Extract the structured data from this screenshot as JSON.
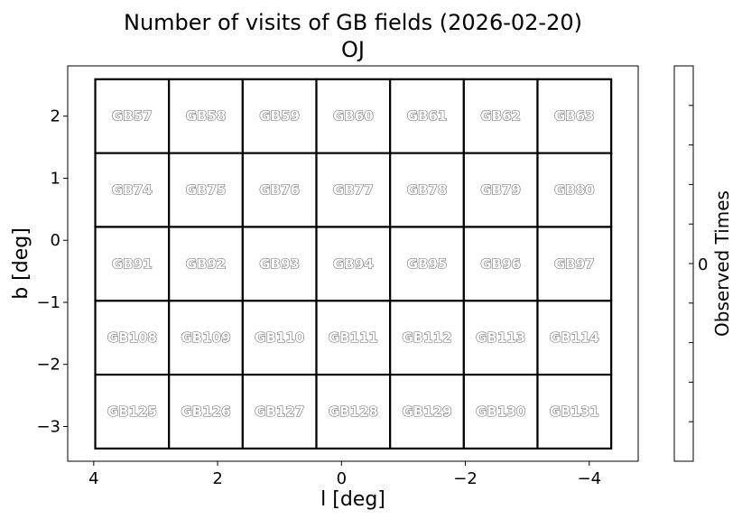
{
  "chart_data": {
    "type": "heatmap",
    "title": "Number of visits of GB fields (2026-02-20)",
    "subtitle": "OJ",
    "xlabel": "l [deg]",
    "ylabel": "b [deg]",
    "xlim": [
      4.42,
      -4.79
    ],
    "ylim": [
      -3.56,
      2.81
    ],
    "x_inverted": true,
    "xticks": [
      4,
      2,
      0,
      -2,
      -4
    ],
    "xtick_labels": [
      "4",
      "2",
      "0",
      "−2",
      "−4"
    ],
    "yticks": [
      2,
      1,
      0,
      -1,
      -2,
      -3
    ],
    "ytick_labels": [
      "2",
      "1",
      "0",
      "−1",
      "−2",
      "−3"
    ],
    "field_size_deg": 1.19,
    "column_l": [
      3.38,
      2.19,
      1.0,
      -0.19,
      -1.38,
      -2.57,
      -3.76
    ],
    "row_b": [
      2.0,
      0.81,
      -0.38,
      -1.57,
      -2.76
    ],
    "fields": [
      [
        "GB57",
        "GB58",
        "GB59",
        "GB60",
        "GB61",
        "GB62",
        "GB63"
      ],
      [
        "GB74",
        "GB75",
        "GB76",
        "GB77",
        "GB78",
        "GB79",
        "GB80"
      ],
      [
        "GB91",
        "GB92",
        "GB93",
        "GB94",
        "GB95",
        "GB96",
        "GB97"
      ],
      [
        "GB108",
        "GB109",
        "GB110",
        "GB111",
        "GB112",
        "GB113",
        "GB114"
      ],
      [
        "GB125",
        "GB126",
        "GB127",
        "GB128",
        "GB129",
        "GB130",
        "GB131"
      ]
    ],
    "counts": [
      [
        0,
        0,
        0,
        0,
        0,
        0,
        0
      ],
      [
        0,
        0,
        0,
        0,
        0,
        0,
        0
      ],
      [
        0,
        0,
        0,
        0,
        0,
        0,
        0
      ],
      [
        0,
        0,
        0,
        0,
        0,
        0,
        0
      ],
      [
        0,
        0,
        0,
        0,
        0,
        0,
        0
      ]
    ],
    "grid": false,
    "colorbar": {
      "label": "Observed Times",
      "ticks": [
        "0"
      ],
      "color": "#ffffff"
    },
    "colors": {
      "cell_edge": "#000000",
      "cell_fill": "#ffffff",
      "label_fill": "#ffffff",
      "label_stroke": "#666666"
    }
  }
}
